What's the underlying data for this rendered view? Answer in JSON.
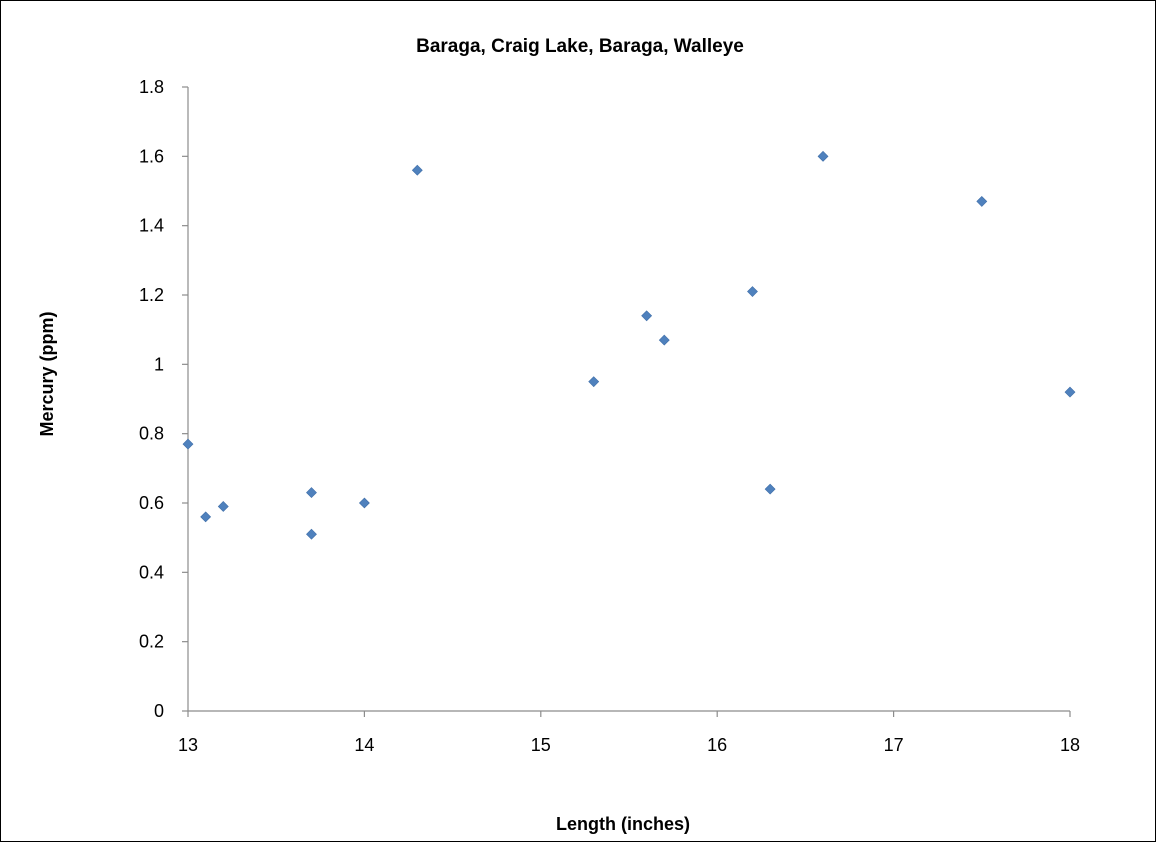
{
  "chart_data": {
    "type": "scatter",
    "title": "Baraga, Craig Lake, Baraga, Walleye",
    "xlabel": "Length (inches)",
    "ylabel": "Mercury (ppm)",
    "xlim": [
      13,
      18
    ],
    "ylim": [
      0,
      1.8
    ],
    "x_ticks": [
      "13",
      "14",
      "15",
      "16",
      "17",
      "18"
    ],
    "y_ticks": [
      "0",
      "0.2",
      "0.4",
      "0.6",
      "0.8",
      "1",
      "1.2",
      "1.4",
      "1.6",
      "1.8"
    ],
    "grid": false,
    "legend": "none",
    "marker": "diamond",
    "color": "#4f81bd",
    "points": [
      {
        "x": 13.0,
        "y": 0.77
      },
      {
        "x": 13.1,
        "y": 0.56
      },
      {
        "x": 13.2,
        "y": 0.59
      },
      {
        "x": 13.7,
        "y": 0.63
      },
      {
        "x": 13.7,
        "y": 0.51
      },
      {
        "x": 14.0,
        "y": 0.6
      },
      {
        "x": 14.3,
        "y": 1.56
      },
      {
        "x": 15.3,
        "y": 0.95
      },
      {
        "x": 15.6,
        "y": 1.14
      },
      {
        "x": 15.7,
        "y": 1.07
      },
      {
        "x": 16.2,
        "y": 1.21
      },
      {
        "x": 16.3,
        "y": 0.64
      },
      {
        "x": 16.6,
        "y": 1.6
      },
      {
        "x": 17.5,
        "y": 1.47
      },
      {
        "x": 18.0,
        "y": 0.92
      }
    ]
  }
}
